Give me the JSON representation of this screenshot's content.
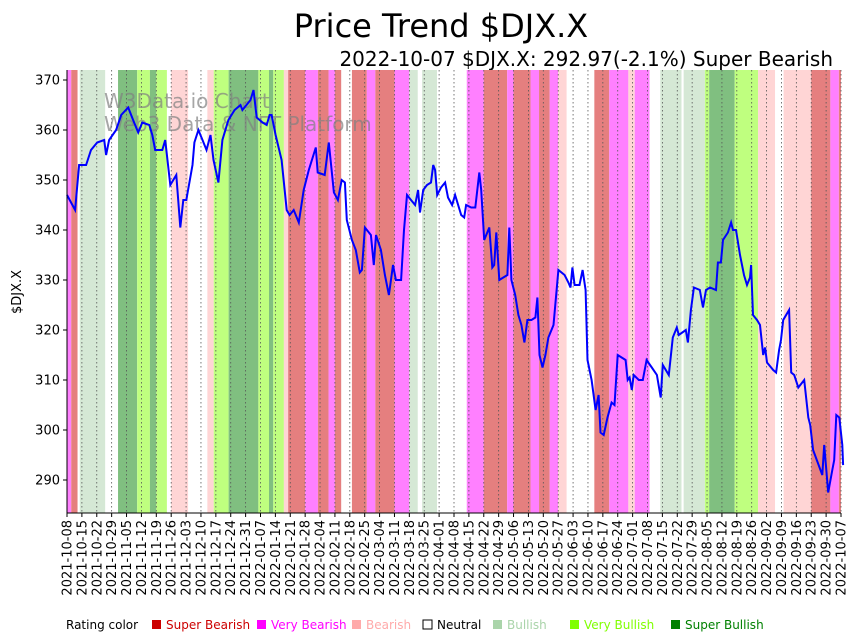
{
  "chart_data": {
    "type": "line",
    "title": "Price Trend $DJX.X",
    "subtitle": "2022-10-07 $DJX.X: 292.97(-2.1%) Super Bearish",
    "ylabel": "$DJX.X",
    "xlabel": "",
    "watermark": [
      "W3Data.io Chart",
      "Web3 Data & NFT Platform"
    ],
    "start_date": "2021-10-08",
    "end_date": "2022-10-07",
    "ylim": [
      283.4,
      372
    ],
    "yticks": [
      290,
      300,
      310,
      320,
      330,
      340,
      350,
      360,
      370
    ],
    "xticks": [
      "2021-10-08",
      "2021-10-15",
      "2021-10-22",
      "2021-10-29",
      "2021-11-05",
      "2021-11-12",
      "2021-11-19",
      "2021-11-26",
      "2021-12-03",
      "2021-12-10",
      "2021-12-17",
      "2021-12-24",
      "2021-12-31",
      "2022-01-07",
      "2022-01-14",
      "2022-01-21",
      "2022-01-28",
      "2022-02-04",
      "2022-02-11",
      "2022-02-18",
      "2022-02-25",
      "2022-03-04",
      "2022-03-11",
      "2022-03-18",
      "2022-03-25",
      "2022-04-01",
      "2022-04-08",
      "2022-04-15",
      "2022-04-22",
      "2022-04-29",
      "2022-05-06",
      "2022-05-13",
      "2022-05-20",
      "2022-05-27",
      "2022-06-03",
      "2022-06-10",
      "2022-06-17",
      "2022-06-24",
      "2022-07-01",
      "2022-07-08",
      "2022-07-15",
      "2022-07-22",
      "2022-07-29",
      "2022-08-05",
      "2022-08-12",
      "2022-08-19",
      "2022-08-26",
      "2022-09-02",
      "2022-09-09",
      "2022-09-16",
      "2022-09-23",
      "2022-09-30",
      "2022-10-07"
    ],
    "grid": "x-dotted",
    "line_color": "#0000ff",
    "rating_colors": {
      "super_bearish": "#e57f7f",
      "very_bearish": "#ff80ff",
      "bearish": "#ffd5d5",
      "neutral": "#ffffff",
      "bullish": "#d5e8d5",
      "very_bullish": "#bfff7f",
      "super_bullish": "#80bf80"
    },
    "bands": [
      [
        "2021-10-08",
        "very_bearish"
      ],
      [
        "2021-10-10",
        "super_bearish"
      ],
      [
        "2021-10-13",
        "neutral"
      ],
      [
        "2021-10-14",
        "bullish"
      ],
      [
        "2021-10-26",
        "neutral"
      ],
      [
        "2021-11-01",
        "super_bullish"
      ],
      [
        "2021-11-10",
        "very_bullish"
      ],
      [
        "2021-11-16",
        "super_bullish"
      ],
      [
        "2021-11-19",
        "very_bullish"
      ],
      [
        "2021-11-24",
        "neutral"
      ],
      [
        "2021-11-26",
        "bearish"
      ],
      [
        "2021-12-04",
        "neutral"
      ],
      [
        "2021-12-13",
        "bearish"
      ],
      [
        "2021-12-16",
        "very_bullish"
      ],
      [
        "2021-12-23",
        "super_bullish"
      ],
      [
        "2022-01-06",
        "very_bullish"
      ],
      [
        "2022-01-11",
        "super_bullish"
      ],
      [
        "2022-01-13",
        "very_bullish"
      ],
      [
        "2022-01-18",
        "bearish"
      ],
      [
        "2022-01-20",
        "super_bearish"
      ],
      [
        "2022-01-28",
        "very_bearish"
      ],
      [
        "2022-02-03",
        "super_bearish"
      ],
      [
        "2022-02-08",
        "very_bearish"
      ],
      [
        "2022-02-11",
        "super_bearish"
      ],
      [
        "2022-02-14",
        "neutral"
      ],
      [
        "2022-02-19",
        "super_bearish"
      ],
      [
        "2022-02-26",
        "very_bearish"
      ],
      [
        "2022-03-02",
        "super_bearish"
      ],
      [
        "2022-03-11",
        "very_bearish"
      ],
      [
        "2022-03-18",
        "bullish"
      ],
      [
        "2022-03-22",
        "neutral"
      ],
      [
        "2022-03-24",
        "bullish"
      ],
      [
        "2022-03-31",
        "neutral"
      ],
      [
        "2022-04-14",
        "very_bearish"
      ],
      [
        "2022-04-22",
        "super_bearish"
      ],
      [
        "2022-05-03",
        "very_bearish"
      ],
      [
        "2022-05-06",
        "super_bearish"
      ],
      [
        "2022-05-14",
        "very_bearish"
      ],
      [
        "2022-05-18",
        "super_bearish"
      ],
      [
        "2022-05-23",
        "very_bearish"
      ],
      [
        "2022-05-27",
        "bearish"
      ],
      [
        "2022-05-31",
        "neutral"
      ],
      [
        "2022-06-13",
        "super_bearish"
      ],
      [
        "2022-06-20",
        "very_bearish"
      ],
      [
        "2022-06-29",
        "bearish"
      ],
      [
        "2022-07-02",
        "very_bearish"
      ],
      [
        "2022-07-09",
        "neutral"
      ],
      [
        "2022-07-14",
        "bullish"
      ],
      [
        "2022-07-24",
        "neutral"
      ],
      [
        "2022-07-25",
        "bullish"
      ],
      [
        "2022-08-04",
        "very_bullish"
      ],
      [
        "2022-08-06",
        "super_bullish"
      ],
      [
        "2022-08-18",
        "very_bullish"
      ],
      [
        "2022-08-29",
        "bearish"
      ],
      [
        "2022-09-06",
        "neutral"
      ],
      [
        "2022-09-10",
        "bearish"
      ],
      [
        "2022-09-23",
        "super_bearish"
      ],
      [
        "2022-10-02",
        "very_bearish"
      ],
      [
        "2022-10-06",
        "super_bearish"
      ]
    ],
    "series": [
      {
        "name": "$DJX.X",
        "x_unit": "days since start_date",
        "points": [
          [
            0,
            347
          ],
          [
            3.8,
            344
          ],
          [
            5.7,
            353
          ],
          [
            9,
            353
          ],
          [
            11.3,
            356
          ],
          [
            14.2,
            357.5
          ],
          [
            17.5,
            358
          ],
          [
            18.4,
            355
          ],
          [
            19.8,
            358
          ],
          [
            23.1,
            360
          ],
          [
            25.5,
            363
          ],
          [
            28.8,
            364.5
          ],
          [
            31.1,
            362
          ],
          [
            33.5,
            359.5
          ],
          [
            35.4,
            361.5
          ],
          [
            38.7,
            361
          ],
          [
            40.1,
            359
          ],
          [
            41.5,
            356
          ],
          [
            44.8,
            356
          ],
          [
            46.2,
            358
          ],
          [
            48.6,
            349
          ],
          [
            51.4,
            351
          ],
          [
            53.3,
            340.5
          ],
          [
            54.7,
            346
          ],
          [
            56.1,
            346
          ],
          [
            59,
            353
          ],
          [
            59.9,
            357.5
          ],
          [
            61.8,
            360
          ],
          [
            63.7,
            358
          ],
          [
            65.6,
            356
          ],
          [
            67.5,
            359
          ],
          [
            68.9,
            354
          ],
          [
            71.2,
            349.5
          ],
          [
            73.1,
            358
          ],
          [
            75.9,
            362
          ],
          [
            78.8,
            364
          ],
          [
            81.6,
            365
          ],
          [
            82.5,
            364
          ],
          [
            86.3,
            366
          ],
          [
            87.7,
            368
          ],
          [
            89.2,
            362.5
          ],
          [
            92,
            361.5
          ],
          [
            93.9,
            361
          ],
          [
            95.3,
            363
          ],
          [
            96.2,
            363
          ],
          [
            98.1,
            359
          ],
          [
            100.9,
            354
          ],
          [
            103.3,
            344
          ],
          [
            104.7,
            343
          ],
          [
            106.6,
            344
          ],
          [
            109,
            341.5
          ],
          [
            111.3,
            348
          ],
          [
            113.7,
            352
          ],
          [
            117,
            356.5
          ],
          [
            117.9,
            351.5
          ],
          [
            121.2,
            351
          ],
          [
            123.1,
            357.5
          ],
          [
            125.5,
            347.5
          ],
          [
            127.4,
            346
          ],
          [
            129.2,
            350
          ],
          [
            130.7,
            349.5
          ],
          [
            131.6,
            342
          ],
          [
            134,
            338
          ],
          [
            135.8,
            336
          ],
          [
            137.7,
            331.5
          ],
          [
            138.7,
            332
          ],
          [
            140.1,
            340.5
          ],
          [
            142.9,
            339
          ],
          [
            144.3,
            333
          ],
          [
            145.3,
            339
          ],
          [
            147.6,
            336
          ],
          [
            149.5,
            331
          ],
          [
            151.4,
            327
          ],
          [
            153.3,
            333
          ],
          [
            154.7,
            330
          ],
          [
            157.1,
            330
          ],
          [
            158.5,
            340
          ],
          [
            159.9,
            347
          ],
          [
            161.8,
            346
          ],
          [
            163.7,
            345
          ],
          [
            165.1,
            348
          ],
          [
            166,
            343.5
          ],
          [
            167.5,
            348
          ],
          [
            169.3,
            349
          ],
          [
            171.2,
            349.5
          ],
          [
            172.2,
            353
          ],
          [
            173.1,
            352
          ],
          [
            174.1,
            347
          ],
          [
            175.9,
            348.5
          ],
          [
            177.8,
            349.5
          ],
          [
            179.2,
            346.5
          ],
          [
            181.1,
            345
          ],
          [
            182.5,
            347
          ],
          [
            185.4,
            343
          ],
          [
            186.8,
            342.5
          ],
          [
            187.7,
            345
          ],
          [
            190.1,
            344.5
          ],
          [
            192,
            344.5
          ],
          [
            193.9,
            351.5
          ],
          [
            194.8,
            348
          ],
          [
            196.2,
            338
          ],
          [
            198.6,
            340.5
          ],
          [
            200,
            332.5
          ],
          [
            200.9,
            333
          ],
          [
            201.9,
            339.5
          ],
          [
            203.3,
            330
          ],
          [
            205.2,
            330.5
          ],
          [
            207.1,
            331
          ],
          [
            208,
            340.5
          ],
          [
            209,
            330
          ],
          [
            210.8,
            327
          ],
          [
            212.3,
            323
          ],
          [
            213.7,
            321
          ],
          [
            215.1,
            317.5
          ],
          [
            216.5,
            322
          ],
          [
            218.4,
            322
          ],
          [
            220.3,
            322.5
          ],
          [
            221.2,
            326.5
          ],
          [
            222.2,
            315
          ],
          [
            223.6,
            312.5
          ],
          [
            225,
            315
          ],
          [
            226.4,
            318.5
          ],
          [
            228.8,
            321
          ],
          [
            231.1,
            332
          ],
          [
            234,
            331
          ],
          [
            235.8,
            329.5
          ],
          [
            236.8,
            328.5
          ],
          [
            237.7,
            332.5
          ],
          [
            238.7,
            329
          ],
          [
            241,
            329
          ],
          [
            242.5,
            332
          ],
          [
            243.9,
            328
          ],
          [
            244.8,
            314
          ],
          [
            246.7,
            310
          ],
          [
            248.6,
            304
          ],
          [
            250,
            307
          ],
          [
            250.9,
            299.5
          ],
          [
            252.4,
            299
          ],
          [
            254.2,
            302.5
          ],
          [
            256.1,
            305.5
          ],
          [
            257.5,
            305
          ],
          [
            259,
            315
          ],
          [
            262.7,
            314
          ],
          [
            263.7,
            310
          ],
          [
            264.6,
            310.5
          ],
          [
            265.6,
            308
          ],
          [
            266.5,
            311
          ],
          [
            268.9,
            310
          ],
          [
            270.8,
            310
          ],
          [
            272.6,
            314
          ],
          [
            275,
            312.5
          ],
          [
            277.4,
            311
          ],
          [
            279.2,
            306.5
          ],
          [
            280.2,
            313
          ],
          [
            283,
            311
          ],
          [
            284.9,
            318.5
          ],
          [
            286.8,
            320.5
          ],
          [
            287.7,
            319
          ],
          [
            291,
            320
          ],
          [
            292,
            317.5
          ],
          [
            293.4,
            324
          ],
          [
            294.8,
            328.5
          ],
          [
            297.6,
            328
          ],
          [
            299.1,
            324.5
          ],
          [
            300.5,
            328
          ],
          [
            302.4,
            328.5
          ],
          [
            305.2,
            328
          ],
          [
            306.1,
            333.5
          ],
          [
            307.5,
            333.5
          ],
          [
            308.5,
            338
          ],
          [
            310.8,
            339.5
          ],
          [
            312.3,
            341.5
          ],
          [
            313.2,
            340
          ],
          [
            314.6,
            340
          ],
          [
            316.5,
            335
          ],
          [
            318.4,
            331
          ],
          [
            319.8,
            329
          ],
          [
            321.2,
            330.5
          ],
          [
            321.7,
            333
          ],
          [
            322.6,
            323
          ],
          [
            324.5,
            322
          ],
          [
            325.9,
            321
          ],
          [
            327.4,
            315
          ],
          [
            328.3,
            316.5
          ],
          [
            329.2,
            313.5
          ],
          [
            332.1,
            312
          ],
          [
            333.5,
            311.5
          ],
          [
            334.9,
            316
          ],
          [
            335.8,
            318
          ],
          [
            336.8,
            322
          ],
          [
            339.6,
            324
          ],
          [
            340.6,
            311.5
          ],
          [
            342,
            311
          ],
          [
            343.9,
            308.5
          ],
          [
            346.7,
            310
          ],
          [
            348.6,
            302.5
          ],
          [
            349.5,
            301
          ],
          [
            350.9,
            296
          ],
          [
            355.2,
            291
          ],
          [
            356.1,
            297
          ],
          [
            358,
            287.5
          ],
          [
            359.9,
            292
          ],
          [
            360.8,
            294
          ],
          [
            361.8,
            303
          ],
          [
            363.2,
            302.5
          ],
          [
            364.6,
            297
          ],
          [
            365,
            292.97
          ]
        ]
      }
    ],
    "legend": {
      "placement": "bottom",
      "title": "Rating color",
      "items": [
        {
          "label": "Super Bearish",
          "color": "#cc0000"
        },
        {
          "label": "Very Bearish",
          "color": "#ff00ff"
        },
        {
          "label": "Bearish",
          "color": "#ffaaaa"
        },
        {
          "label": "Neutral",
          "color": "#ffffff",
          "text_color": "#000000"
        },
        {
          "label": "Bullish",
          "color": "#aad4aa"
        },
        {
          "label": "Very Bullish",
          "color": "#80ff00"
        },
        {
          "label": "Super Bullish",
          "color": "#008000"
        }
      ]
    }
  }
}
